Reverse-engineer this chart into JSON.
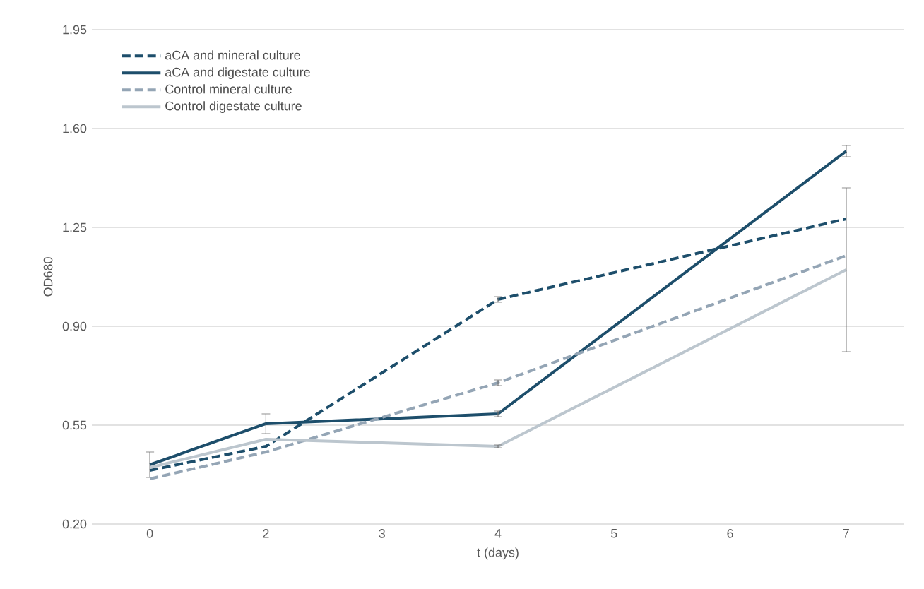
{
  "chart_data": {
    "type": "line",
    "xlabel": "t (days)",
    "ylabel": "OD680",
    "categories": [
      "0",
      "2",
      "3",
      "4",
      "5",
      "6",
      "7"
    ],
    "ylim": [
      0.2,
      1.95
    ],
    "yticks": [
      {
        "value": 0.2,
        "label": "0.20"
      },
      {
        "value": 0.55,
        "label": "0.55"
      },
      {
        "value": 0.9,
        "label": "0.90"
      },
      {
        "value": 1.25,
        "label": "1.25"
      },
      {
        "value": 1.6,
        "label": "1.60"
      },
      {
        "value": 1.95,
        "label": "1.95"
      }
    ],
    "grid": "y",
    "legend": "top left",
    "marker": "none",
    "series": [
      {
        "name": "aCA and mineral culture",
        "color": "#1d4e6b",
        "line_style": "dashed",
        "values": [
          0.39,
          0.475,
          null,
          0.995,
          null,
          null,
          1.28
        ],
        "errors": [
          null,
          null,
          null,
          0.01,
          null,
          null,
          null
        ]
      },
      {
        "name": "aCA and digestate culture",
        "color": "#1d4e6b",
        "line_style": "solid",
        "values": [
          0.41,
          0.555,
          null,
          0.59,
          null,
          null,
          1.52
        ],
        "errors": [
          0.045,
          0.035,
          null,
          0.01,
          null,
          null,
          0.02
        ]
      },
      {
        "name": "Control mineral culture",
        "color": "#94a5b5",
        "line_style": "dashed",
        "values": [
          0.36,
          0.455,
          null,
          0.7,
          null,
          null,
          1.15
        ],
        "errors": [
          null,
          null,
          null,
          0.01,
          null,
          null,
          null
        ]
      },
      {
        "name": "Control digestate culture",
        "color": "#bcc6ce",
        "line_style": "solid",
        "values": [
          0.4,
          0.5,
          null,
          0.475,
          null,
          null,
          1.1
        ],
        "errors": [
          null,
          null,
          null,
          0.005,
          null,
          null,
          0.29
        ]
      }
    ]
  }
}
